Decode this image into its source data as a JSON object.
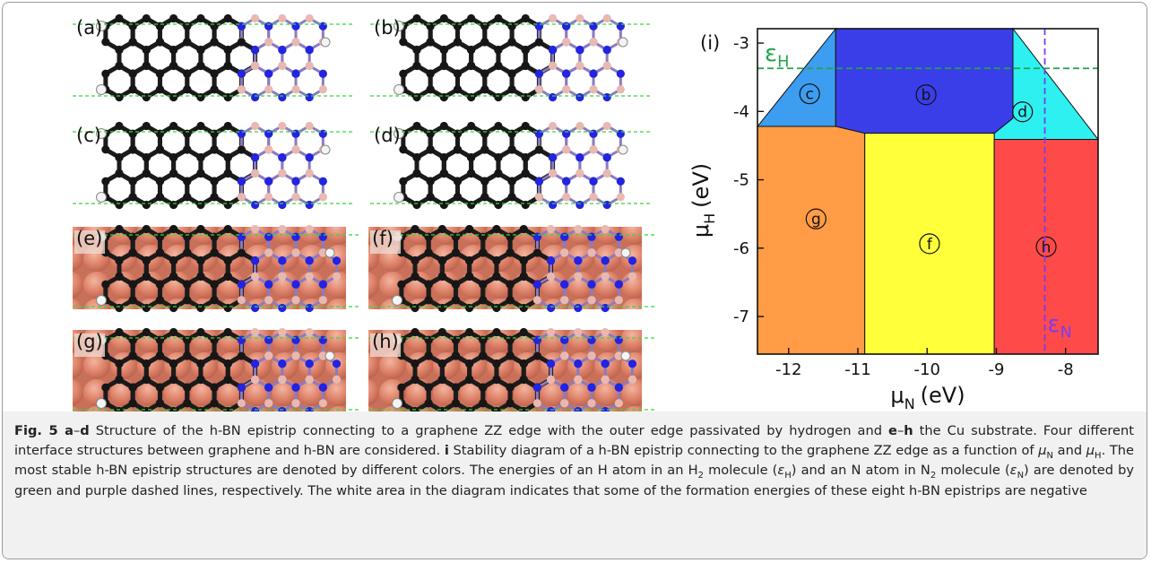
{
  "panels": [
    {
      "label": "(a)"
    },
    {
      "label": "(b)"
    },
    {
      "label": "(c)"
    },
    {
      "label": "(d)"
    },
    {
      "label": "(e)"
    },
    {
      "label": "(f)"
    },
    {
      "label": "(g)"
    },
    {
      "label": "(h)"
    }
  ],
  "chart_data": {
    "type": "region",
    "panel_label": "(i)",
    "xlabel": {
      "main": "μ",
      "sub": "N",
      "unit": "(eV)"
    },
    "ylabel": {
      "main": "μ",
      "sub": "H",
      "unit": "(eV)"
    },
    "xlim": [
      -12.45,
      -7.53
    ],
    "ylim": [
      -7.55,
      -2.79
    ],
    "xticks": [
      -12,
      -11,
      -10,
      -9,
      -8
    ],
    "yticks": [
      -3,
      -4,
      -5,
      -6,
      -7
    ],
    "regions": [
      {
        "label": "c",
        "color": "#3d9df0",
        "x": [
          -12.45,
          -11.32,
          -11.32
        ],
        "y": [
          -4.22,
          -2.79,
          -4.22
        ]
      },
      {
        "label": "b",
        "color": "#3a3ee8",
        "x": [
          -11.32,
          -8.76,
          -8.76,
          -9.03,
          -10.9,
          -11.32
        ],
        "y": [
          -2.79,
          -2.79,
          -4.1,
          -4.32,
          -4.32,
          -4.22
        ]
      },
      {
        "label": "d",
        "color": "#2ef0f0",
        "x": [
          -8.76,
          -7.53,
          -9.03,
          -9.03,
          -8.76
        ],
        "y": [
          -2.79,
          -4.41,
          -4.41,
          -4.32,
          -4.1
        ]
      },
      {
        "label": "g",
        "color": "#ff9c45",
        "x": [
          -12.45,
          -11.32,
          -10.9,
          -10.9,
          -12.45
        ],
        "y": [
          -4.22,
          -4.22,
          -4.32,
          -7.55,
          -7.55
        ]
      },
      {
        "label": "f",
        "color": "#ffff3a",
        "x": [
          -10.9,
          -9.03,
          -9.03,
          -10.9
        ],
        "y": [
          -4.32,
          -4.32,
          -7.55,
          -7.55
        ]
      },
      {
        "label": "h",
        "color": "#ff4a4a",
        "x": [
          -9.03,
          -7.53,
          -7.53,
          -9.03
        ],
        "y": [
          -4.41,
          -4.41,
          -7.55,
          -7.55
        ]
      }
    ],
    "eps_H": {
      "main": "ε",
      "sub": "H",
      "value": -3.37,
      "color": "#1fa44a"
    },
    "eps_N": {
      "main": "ε",
      "sub": "N",
      "value": -8.3,
      "color": "#7a3cf0"
    }
  },
  "caption": [
    {
      "text": "Fig. 5 a",
      "style": "bold"
    },
    {
      "text": "–"
    },
    {
      "text": "d",
      "style": "bold"
    },
    {
      "text": " Structure of the h-BN epistrip connecting to a graphene ZZ edge with the outer edge passivated by hydrogen and "
    },
    {
      "text": "e",
      "style": "bold"
    },
    {
      "text": "–"
    },
    {
      "text": "h",
      "style": "bold"
    },
    {
      "text": " the Cu substrate. Four different interface structures between graphene and h-BN are considered. "
    },
    {
      "text": "i",
      "style": "bold"
    },
    {
      "text": " Stability diagram of a h-BN epistrip connecting to the graphene ZZ edge as a function of "
    },
    {
      "text": "μ",
      "style": "italic"
    },
    {
      "text": "N",
      "style": "sub"
    },
    {
      "text": " and "
    },
    {
      "text": "μ",
      "style": "italic"
    },
    {
      "text": "H",
      "style": "sub"
    },
    {
      "text": ". The most stable h-BN epistrip structures are denoted by different colors. The energies of an H atom in an H"
    },
    {
      "text": "2",
      "style": "sub"
    },
    {
      "text": " molecule ("
    },
    {
      "text": "ε",
      "style": "italic"
    },
    {
      "text": "H",
      "style": "sub"
    },
    {
      "text": ") and an N atom in N"
    },
    {
      "text": "2",
      "style": "sub"
    },
    {
      "text": " molecule ("
    },
    {
      "text": "ε",
      "style": "italic"
    },
    {
      "text": "N",
      "style": "sub"
    },
    {
      "text": ") are denoted by green and purple dashed lines, respectively. The white area in the diagram indicates that some of the formation energies of these eight h-BN epistrips are negative"
    }
  ]
}
